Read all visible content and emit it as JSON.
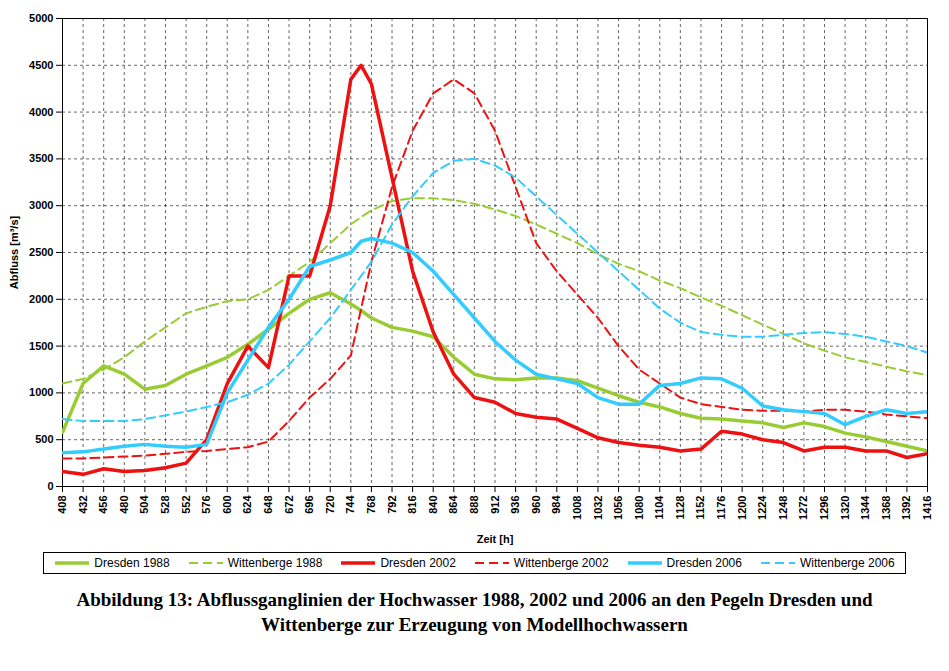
{
  "chart_data": {
    "type": "line",
    "title": "Abbildung 13: Abflussganglinien der Hochwasser 1988, 2002 und 2006 an den Pegeln Dresden und Wittenberge zur Erzeugung von Modellhochwassern",
    "x_label": "Zeit [h]",
    "y_label": "Abfluss [m³/s]",
    "x": [
      408,
      432,
      456,
      480,
      504,
      528,
      552,
      576,
      600,
      624,
      648,
      672,
      696,
      720,
      744,
      756,
      768,
      792,
      816,
      840,
      864,
      888,
      912,
      936,
      960,
      984,
      1008,
      1032,
      1056,
      1080,
      1104,
      1128,
      1152,
      1176,
      1200,
      1224,
      1248,
      1272,
      1296,
      1320,
      1344,
      1368,
      1392,
      1416
    ],
    "series": [
      {
        "name": "Dresden 1988",
        "color": "#99cc33",
        "line_style": "solid",
        "values": [
          580,
          1100,
          1290,
          1200,
          1040,
          1080,
          1200,
          1290,
          1380,
          1520,
          1680,
          1850,
          2000,
          2070,
          1950,
          1880,
          1800,
          1700,
          1660,
          1600,
          1380,
          1200,
          1150,
          1140,
          1160,
          1160,
          1130,
          1050,
          970,
          900,
          850,
          780,
          730,
          720,
          700,
          680,
          630,
          680,
          640,
          570,
          530,
          480,
          430,
          380
        ]
      },
      {
        "name": "Wittenberge 1988",
        "color": "#99cc33",
        "line_style": "dashed",
        "values": [
          1100,
          1150,
          1250,
          1380,
          1550,
          1700,
          1850,
          1920,
          1980,
          2000,
          2100,
          2250,
          2400,
          2600,
          2800,
          2880,
          2950,
          3050,
          3080,
          3080,
          3060,
          3020,
          2960,
          2890,
          2800,
          2700,
          2600,
          2480,
          2380,
          2300,
          2200,
          2120,
          2020,
          1930,
          1830,
          1730,
          1630,
          1530,
          1450,
          1380,
          1330,
          1280,
          1230,
          1190
        ]
      },
      {
        "name": "Dresden 2002",
        "color": "#ee1111",
        "line_style": "solid",
        "values": [
          160,
          130,
          190,
          160,
          170,
          200,
          250,
          500,
          1100,
          1500,
          1270,
          2250,
          2250,
          3000,
          4350,
          4500,
          4300,
          3300,
          2300,
          1650,
          1200,
          950,
          900,
          780,
          740,
          720,
          620,
          520,
          470,
          440,
          420,
          380,
          400,
          590,
          560,
          500,
          470,
          380,
          420,
          420,
          380,
          380,
          310,
          350
        ]
      },
      {
        "name": "Wittenberge 2002",
        "color": "#ee1111",
        "line_style": "dashed",
        "values": [
          300,
          300,
          310,
          320,
          330,
          350,
          370,
          380,
          400,
          420,
          480,
          700,
          950,
          1150,
          1400,
          1900,
          2400,
          3200,
          3800,
          4200,
          4350,
          4200,
          3800,
          3200,
          2600,
          2300,
          2050,
          1800,
          1500,
          1250,
          1100,
          950,
          880,
          850,
          820,
          810,
          810,
          800,
          820,
          820,
          800,
          770,
          750,
          730
        ]
      },
      {
        "name": "Dresden 2006",
        "color": "#33ccff",
        "line_style": "solid",
        "values": [
          360,
          370,
          400,
          430,
          450,
          430,
          420,
          450,
          1000,
          1350,
          1700,
          2000,
          2350,
          2420,
          2500,
          2620,
          2650,
          2600,
          2500,
          2300,
          2050,
          1800,
          1550,
          1350,
          1200,
          1150,
          1100,
          950,
          880,
          880,
          1080,
          1100,
          1160,
          1150,
          1050,
          860,
          820,
          800,
          780,
          660,
          750,
          820,
          780,
          800
        ]
      },
      {
        "name": "Wittenberge 2006",
        "color": "#33ccff",
        "line_style": "dashed",
        "values": [
          720,
          700,
          700,
          700,
          720,
          760,
          800,
          850,
          900,
          980,
          1100,
          1300,
          1550,
          1800,
          2100,
          2250,
          2400,
          2800,
          3100,
          3350,
          3480,
          3500,
          3430,
          3300,
          3100,
          2900,
          2700,
          2500,
          2300,
          2100,
          1900,
          1750,
          1650,
          1620,
          1600,
          1600,
          1620,
          1640,
          1650,
          1630,
          1600,
          1550,
          1500,
          1430
        ]
      }
    ],
    "xlim": [
      408,
      1416
    ],
    "xticks": [
      408,
      432,
      456,
      480,
      504,
      528,
      552,
      576,
      600,
      624,
      648,
      672,
      696,
      720,
      744,
      768,
      792,
      816,
      840,
      864,
      888,
      912,
      936,
      960,
      984,
      1008,
      1032,
      1056,
      1080,
      1104,
      1128,
      1152,
      1176,
      1200,
      1224,
      1248,
      1272,
      1296,
      1320,
      1344,
      1368,
      1392,
      1416
    ],
    "ylim": [
      0,
      5000
    ],
    "yticks": [
      0,
      500,
      1000,
      1500,
      2000,
      2500,
      3000,
      3500,
      4000,
      4500,
      5000
    ],
    "grid": true,
    "legend": "bottom"
  }
}
